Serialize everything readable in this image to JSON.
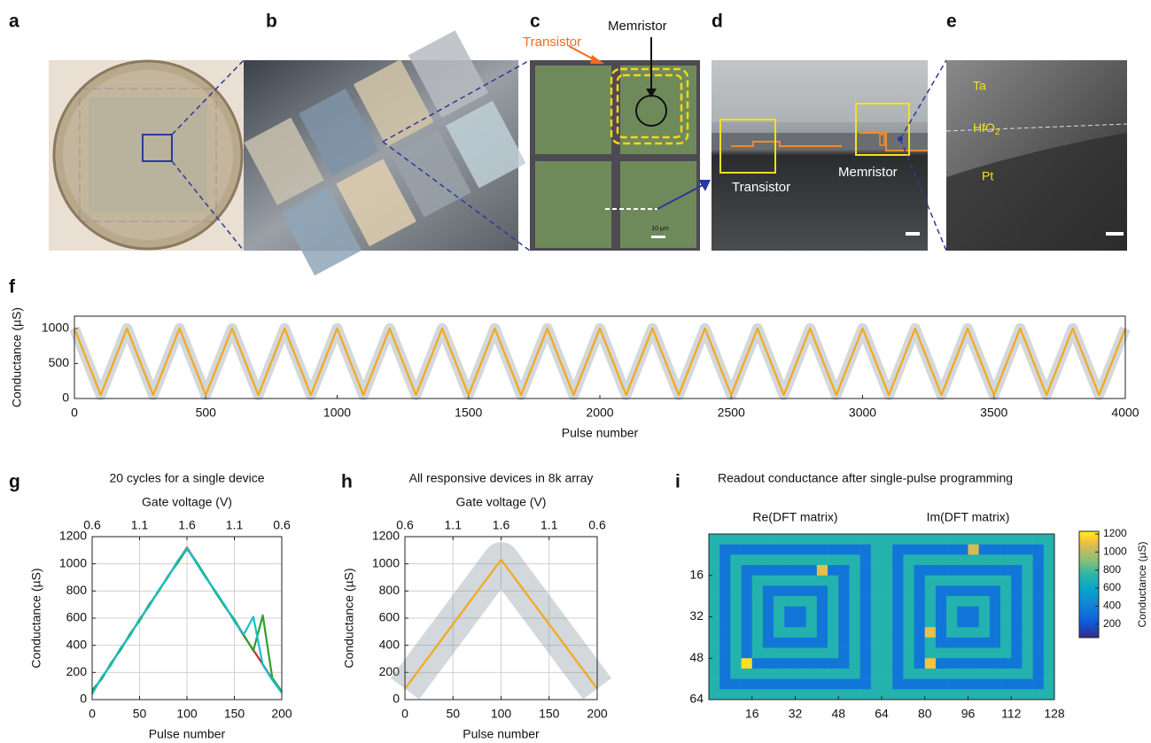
{
  "panel_labels": [
    "a",
    "b",
    "c",
    "d",
    "e",
    "f",
    "g",
    "h",
    "i"
  ],
  "images": {
    "c": {
      "transistor": "Transistor",
      "memristor": "Memristor",
      "scale": "10 µm"
    },
    "d": {
      "transistor": "Transistor",
      "memristor": "Memristor"
    },
    "e": {
      "ta": "Ta",
      "hfo2": "HfO",
      "hfo2_sub": "2",
      "pt": "Pt"
    }
  },
  "chart_data": [
    {
      "type": "line",
      "xlabel": "Pulse number",
      "ylabel": "Conductance (µS)",
      "x": [
        0,
        100,
        200,
        300,
        400,
        500,
        600,
        700,
        800,
        900,
        1000,
        1100,
        1200,
        1300,
        1400,
        1500,
        1600,
        1700,
        1800,
        1900,
        2000,
        2100,
        2200,
        2300,
        2400,
        2500,
        2600,
        2700,
        2800,
        2900,
        3000,
        3100,
        3200,
        3300,
        3400,
        3500,
        3600,
        3700,
        3800,
        3900,
        4000
      ],
      "series": [
        {
          "color": "#f5a81c",
          "values": [
            1000,
            50,
            1000,
            50,
            1000,
            50,
            1000,
            50,
            1000,
            50,
            1000,
            50,
            1000,
            50,
            1000,
            50,
            1000,
            50,
            1000,
            50,
            1000,
            50,
            1000,
            50,
            1000,
            50,
            1000,
            50,
            1000,
            50,
            1000,
            50,
            1000,
            50,
            1000,
            50,
            1000,
            50,
            1000,
            50,
            1000
          ]
        }
      ],
      "xlim": [
        0,
        4000
      ],
      "xticks": [
        0,
        500,
        1000,
        1500,
        2000,
        2500,
        3000,
        3500,
        4000
      ],
      "ylim": [
        0,
        1175
      ],
      "yticks": [
        0,
        500,
        1000
      ],
      "grid": false
    },
    {
      "type": "line",
      "title": "20 cycles for a single device",
      "x2label": "Gate voltage (V)",
      "xlabel": "Pulse number",
      "ylabel": "Conductance (µS)",
      "x": [
        0,
        10,
        20,
        30,
        40,
        50,
        60,
        70,
        80,
        90,
        100,
        110,
        120,
        130,
        140,
        150,
        160,
        170,
        180,
        190,
        200
      ],
      "series": [
        {
          "color": "#d62728",
          "values": [
            50,
            160,
            262,
            375,
            476,
            588,
            690,
            800,
            905,
            1015,
            1120,
            1010,
            900,
            795,
            690,
            580,
            470,
            365,
            260,
            150,
            55
          ]
        },
        {
          "color": "#2ca02c",
          "values": [
            70,
            150,
            270,
            365,
            485,
            580,
            700,
            795,
            910,
            1005,
            1110,
            1015,
            905,
            790,
            685,
            590,
            475,
            360,
            620,
            160,
            60
          ]
        },
        {
          "color": "#17becf",
          "values": [
            40,
            165,
            255,
            380,
            470,
            595,
            685,
            805,
            900,
            1020,
            1115,
            1005,
            895,
            800,
            695,
            575,
            480,
            610,
            255,
            145,
            50
          ]
        }
      ],
      "xlim": [
        0,
        200
      ],
      "xticks": [
        0,
        50,
        100,
        150,
        200
      ],
      "x2ticks": [
        {
          "value": 0,
          "label": "0.6"
        },
        {
          "value": 50,
          "label": "1.1"
        },
        {
          "value": 100,
          "label": "1.6"
        },
        {
          "value": 150,
          "label": "1.1"
        },
        {
          "value": 200,
          "label": "0.6"
        }
      ],
      "ylim": [
        0,
        1200
      ],
      "yticks": [
        0,
        200,
        400,
        600,
        800,
        1000,
        1200
      ],
      "grid": true
    },
    {
      "type": "line",
      "title": "All responsive devices in 8k array",
      "x2label": "Gate voltage (V)",
      "xlabel": "Pulse number",
      "ylabel": "Conductance (µS)",
      "x": [
        0,
        10,
        20,
        30,
        40,
        50,
        60,
        70,
        80,
        90,
        100,
        110,
        120,
        130,
        140,
        150,
        160,
        170,
        180,
        190,
        200
      ],
      "series": [
        {
          "color": "#f5a81c",
          "values": [
            80,
            175,
            270,
            365,
            460,
            555,
            650,
            745,
            840,
            935,
            1030,
            935,
            840,
            745,
            650,
            555,
            460,
            365,
            270,
            175,
            80
          ]
        }
      ],
      "xlim": [
        0,
        200
      ],
      "xticks": [
        0,
        50,
        100,
        150,
        200
      ],
      "x2ticks": [
        {
          "value": 0,
          "label": "0.6"
        },
        {
          "value": 50,
          "label": "1.1"
        },
        {
          "value": 100,
          "label": "1.6"
        },
        {
          "value": 150,
          "label": "1.1"
        },
        {
          "value": 200,
          "label": "0.6"
        }
      ],
      "ylim": [
        0,
        1200
      ],
      "yticks": [
        0,
        200,
        400,
        600,
        800,
        1000,
        1200
      ],
      "grid": true
    },
    {
      "type": "heatmap",
      "title": "Readout conductance after single-pulse programming",
      "column_labels": [
        "Re(DFT matrix)",
        "Im(DFT matrix)"
      ],
      "colorbar_label": "Conductance (µS)",
      "xlim": [
        0,
        128
      ],
      "xticks": [
        16,
        32,
        48,
        64,
        80,
        96,
        112,
        128
      ],
      "ylim": [
        0,
        64
      ],
      "yticks": [
        16,
        32,
        48,
        64
      ],
      "y_inverted": true,
      "clim": [
        50,
        1230
      ],
      "cticks": [
        200,
        400,
        600,
        800,
        1000,
        1200
      ],
      "values": [
        [
          600,
          600,
          600,
          600,
          600,
          600,
          600,
          600,
          600,
          600,
          600,
          600,
          600,
          600,
          600,
          600,
          600,
          600,
          600,
          600,
          600,
          600,
          600,
          600,
          600,
          600,
          600,
          600,
          600,
          600,
          600,
          600
        ],
        [
          600,
          300,
          300,
          300,
          300,
          300,
          300,
          300,
          300,
          300,
          300,
          300,
          300,
          300,
          300,
          600,
          600,
          300,
          300,
          300,
          300,
          300,
          300,
          300,
          950,
          300,
          300,
          300,
          300,
          300,
          300,
          600
        ],
        [
          600,
          300,
          600,
          600,
          600,
          600,
          600,
          600,
          600,
          600,
          600,
          600,
          600,
          600,
          300,
          600,
          600,
          300,
          600,
          600,
          600,
          600,
          600,
          600,
          600,
          600,
          600,
          600,
          600,
          600,
          300,
          600
        ],
        [
          600,
          300,
          600,
          300,
          300,
          300,
          300,
          300,
          300,
          300,
          1000,
          300,
          300,
          600,
          300,
          600,
          600,
          300,
          600,
          300,
          300,
          300,
          300,
          300,
          300,
          300,
          300,
          300,
          300,
          600,
          300,
          600
        ],
        [
          600,
          300,
          600,
          300,
          600,
          600,
          600,
          600,
          600,
          600,
          600,
          600,
          300,
          600,
          300,
          600,
          600,
          300,
          600,
          300,
          600,
          600,
          600,
          600,
          600,
          600,
          600,
          600,
          300,
          600,
          300,
          600
        ],
        [
          600,
          300,
          600,
          300,
          600,
          300,
          300,
          300,
          300,
          300,
          300,
          600,
          300,
          600,
          300,
          600,
          600,
          300,
          600,
          300,
          600,
          300,
          300,
          300,
          300,
          300,
          300,
          600,
          300,
          600,
          300,
          600
        ],
        [
          600,
          300,
          600,
          300,
          600,
          300,
          600,
          600,
          600,
          600,
          300,
          600,
          300,
          600,
          300,
          600,
          600,
          300,
          600,
          300,
          600,
          300,
          600,
          600,
          600,
          600,
          300,
          600,
          300,
          600,
          300,
          600
        ],
        [
          600,
          300,
          600,
          300,
          600,
          300,
          600,
          300,
          300,
          600,
          300,
          600,
          300,
          600,
          300,
          600,
          600,
          300,
          600,
          300,
          600,
          300,
          600,
          300,
          300,
          600,
          300,
          600,
          300,
          600,
          300,
          600
        ],
        [
          600,
          300,
          600,
          300,
          600,
          300,
          600,
          300,
          300,
          600,
          300,
          600,
          300,
          600,
          300,
          600,
          600,
          300,
          600,
          300,
          600,
          300,
          600,
          300,
          300,
          600,
          300,
          600,
          300,
          600,
          300,
          600
        ],
        [
          600,
          300,
          600,
          300,
          600,
          300,
          600,
          600,
          600,
          600,
          300,
          600,
          300,
          600,
          300,
          600,
          600,
          300,
          600,
          300,
          1000,
          300,
          600,
          600,
          600,
          600,
          300,
          600,
          300,
          600,
          300,
          600
        ],
        [
          600,
          300,
          600,
          300,
          600,
          300,
          300,
          300,
          300,
          300,
          300,
          600,
          300,
          600,
          300,
          600,
          600,
          300,
          600,
          300,
          600,
          300,
          300,
          300,
          300,
          300,
          300,
          600,
          300,
          600,
          300,
          600
        ],
        [
          600,
          300,
          600,
          300,
          600,
          600,
          600,
          600,
          600,
          600,
          600,
          600,
          300,
          600,
          300,
          600,
          600,
          300,
          600,
          300,
          600,
          600,
          600,
          600,
          600,
          600,
          600,
          600,
          300,
          600,
          300,
          600
        ],
        [
          600,
          300,
          600,
          1150,
          300,
          300,
          300,
          300,
          300,
          300,
          300,
          300,
          300,
          600,
          300,
          600,
          600,
          300,
          600,
          300,
          1050,
          300,
          300,
          300,
          300,
          300,
          300,
          300,
          300,
          600,
          300,
          600
        ],
        [
          600,
          300,
          600,
          600,
          600,
          600,
          600,
          600,
          600,
          600,
          600,
          600,
          600,
          600,
          300,
          600,
          600,
          300,
          600,
          600,
          600,
          600,
          600,
          600,
          600,
          600,
          600,
          600,
          600,
          600,
          300,
          600
        ],
        [
          600,
          300,
          300,
          300,
          300,
          300,
          300,
          300,
          300,
          300,
          300,
          300,
          300,
          300,
          300,
          600,
          600,
          300,
          300,
          300,
          300,
          300,
          300,
          300,
          300,
          300,
          300,
          300,
          300,
          300,
          300,
          600
        ],
        [
          600,
          600,
          600,
          600,
          600,
          600,
          600,
          600,
          600,
          600,
          600,
          600,
          600,
          600,
          600,
          600,
          600,
          600,
          600,
          600,
          600,
          600,
          600,
          600,
          600,
          600,
          600,
          600,
          600,
          600,
          600,
          600
        ]
      ]
    }
  ]
}
